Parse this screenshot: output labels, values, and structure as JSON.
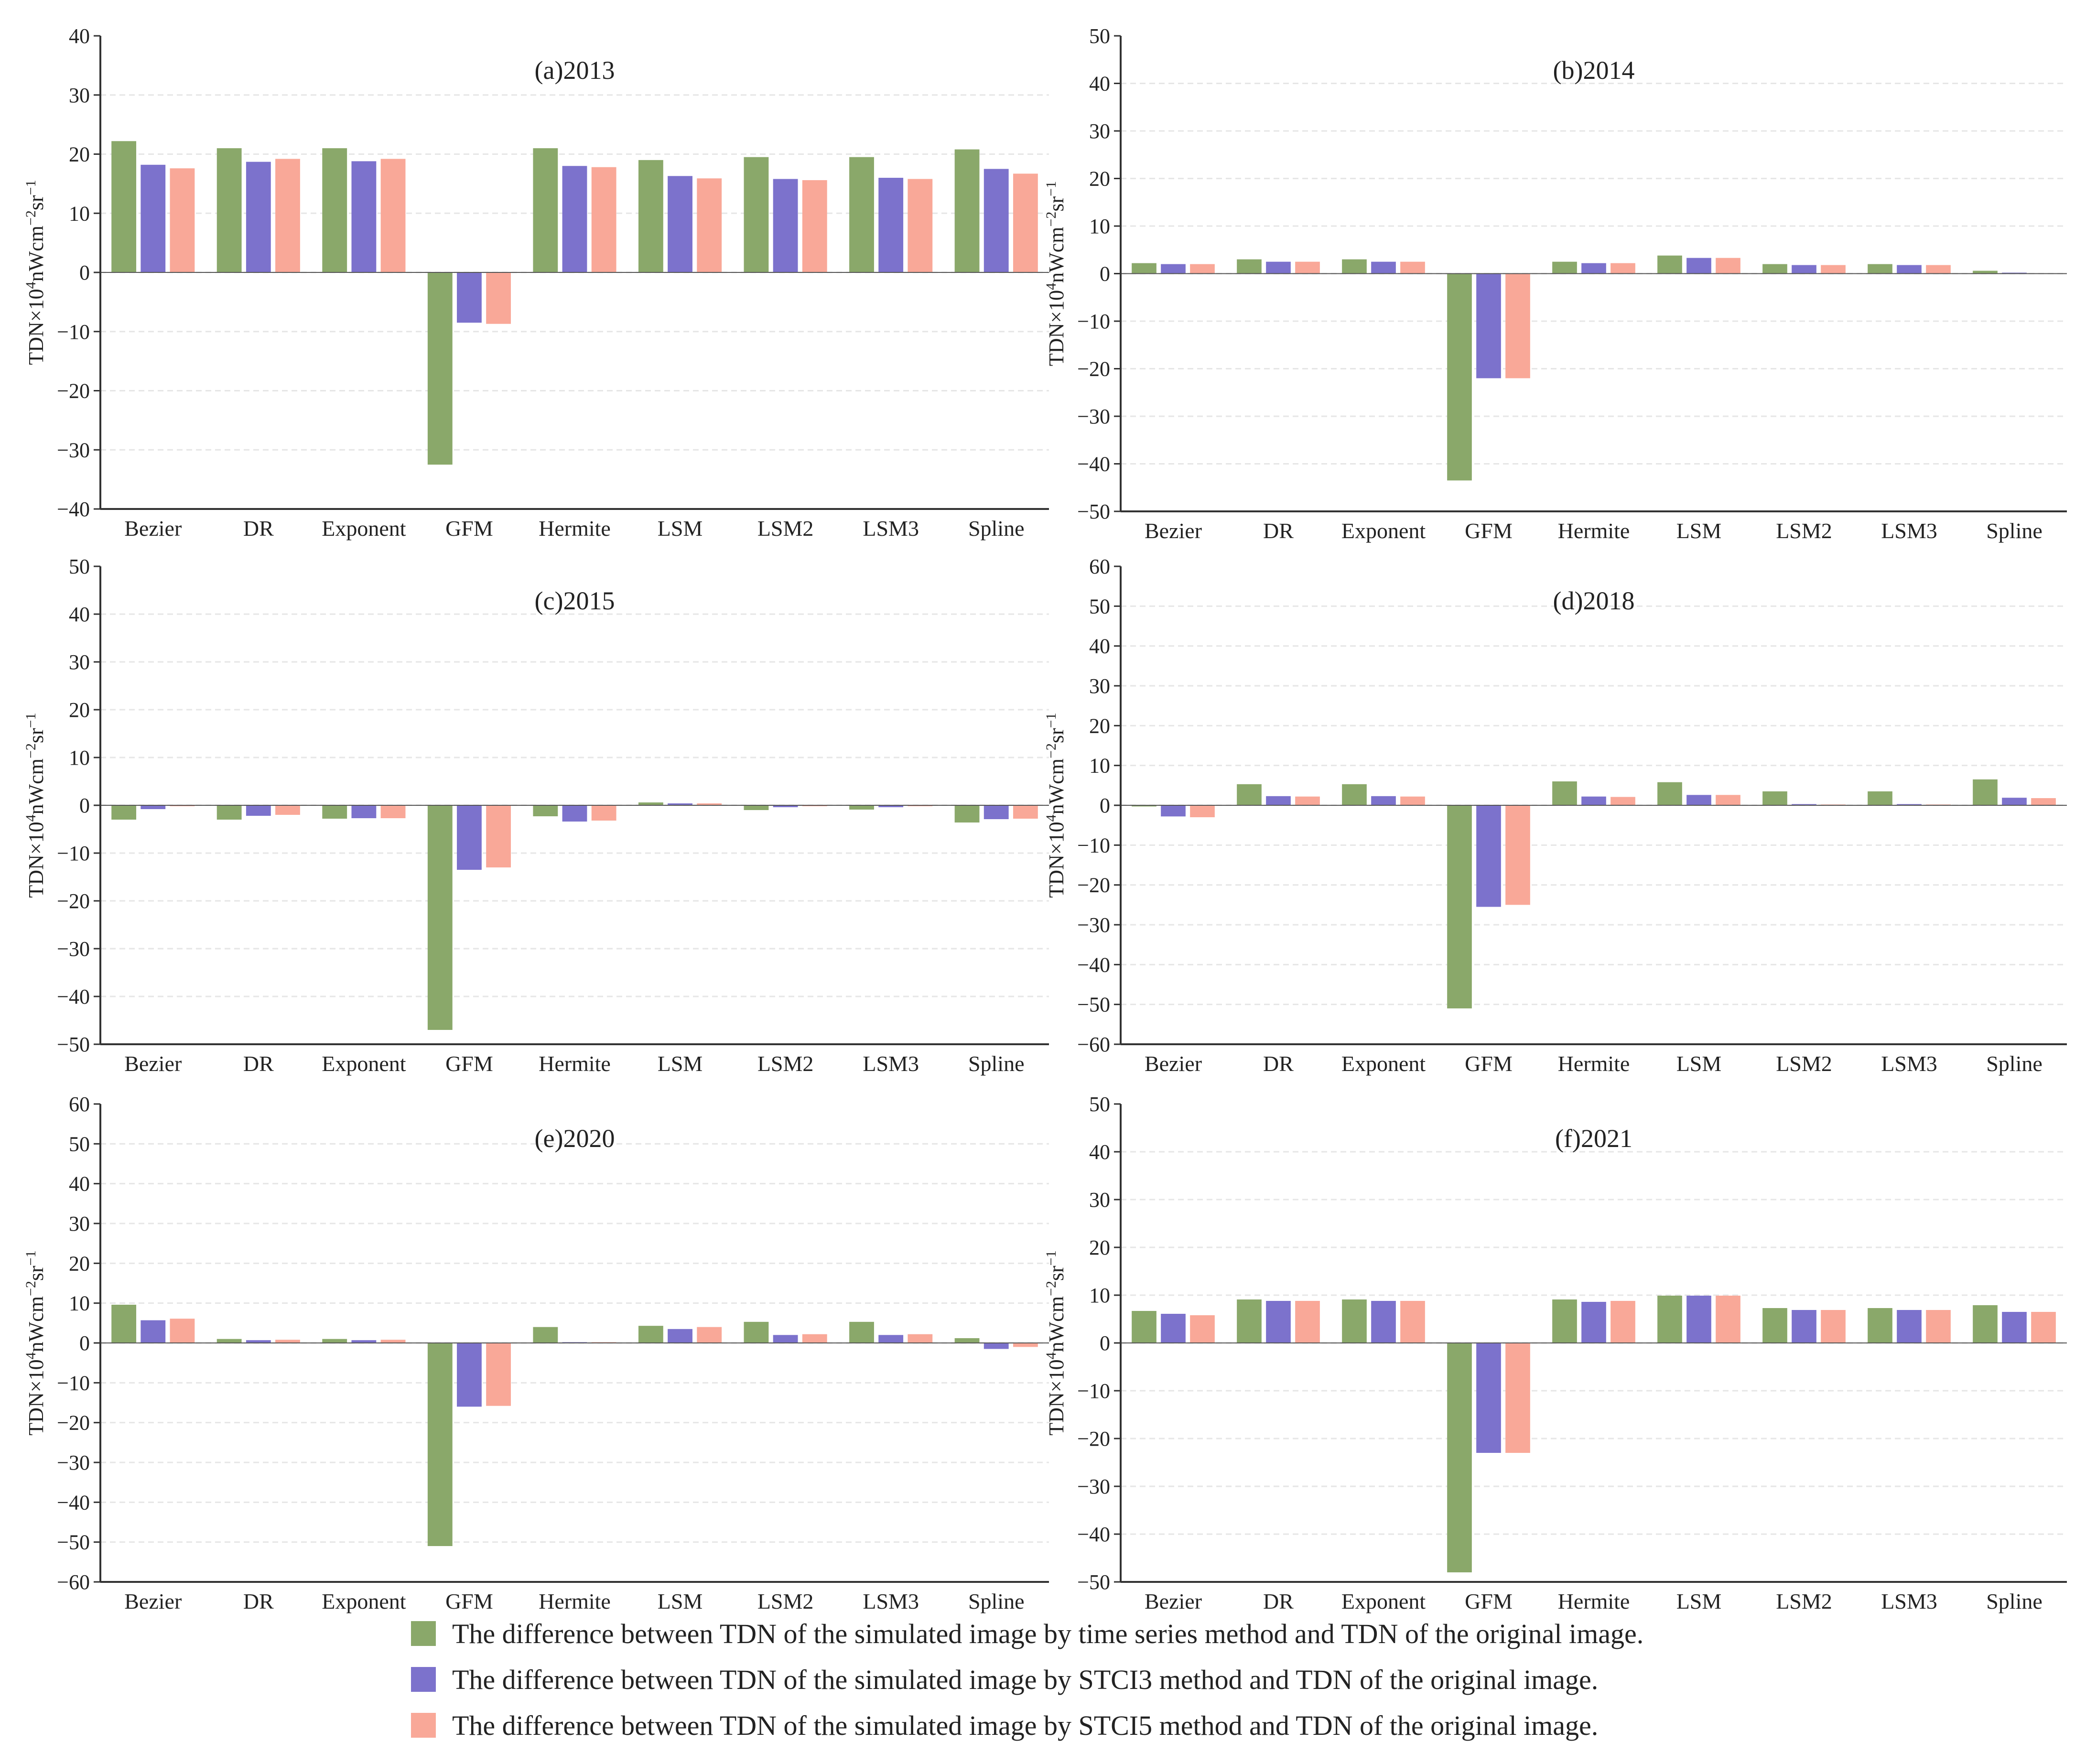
{
  "colors": {
    "s1": "#8aa86a",
    "s2": "#7c72cc",
    "s3": "#f9a898",
    "axis": "#333333",
    "grid": "#e6e6e6"
  },
  "ylabel": {
    "prefix": "TDN×10",
    "sup1": "4",
    "mid1": "nWcm",
    "sup2": "−2",
    "mid2": "sr",
    "sup3": "−1"
  },
  "legend": [
    "The difference between TDN of the simulated image by time series method and TDN of the original image.",
    "The difference between TDN of the simulated image by STCI3 method and TDN of the original image.",
    "The difference between TDN of the simulated image by STCI5 method and TDN of the original image."
  ],
  "chart_data": [
    {
      "type": "bar",
      "title": "(a)2013",
      "categories": [
        "Bezier",
        "DR",
        "Exponent",
        "GFM",
        "Hermite",
        "LSM",
        "LSM2",
        "LSM3",
        "Spline"
      ],
      "ylim": [
        -40,
        40
      ],
      "yticks": [
        -40,
        -30,
        -20,
        -10,
        0,
        10,
        20,
        30,
        40
      ],
      "series": [
        {
          "name": "time series",
          "values": [
            22.2,
            21.0,
            21.0,
            -32.5,
            21.0,
            19.0,
            19.5,
            19.5,
            20.8
          ]
        },
        {
          "name": "STCI3",
          "values": [
            18.2,
            18.7,
            18.8,
            -8.5,
            18.0,
            16.3,
            15.8,
            16.0,
            17.5
          ]
        },
        {
          "name": "STCI5",
          "values": [
            17.6,
            19.2,
            19.2,
            -8.7,
            17.8,
            15.9,
            15.6,
            15.8,
            16.7
          ]
        }
      ]
    },
    {
      "type": "bar",
      "title": "(b)2014",
      "categories": [
        "Bezier",
        "DR",
        "Exponent",
        "GFM",
        "Hermite",
        "LSM",
        "LSM2",
        "LSM3",
        "Spline"
      ],
      "ylim": [
        -50,
        50
      ],
      "yticks": [
        -50,
        -40,
        -30,
        -20,
        -10,
        0,
        10,
        20,
        30,
        40,
        50
      ],
      "series": [
        {
          "name": "time series",
          "values": [
            2.2,
            3.0,
            3.0,
            -43.5,
            2.5,
            3.8,
            2.0,
            2.0,
            0.6
          ]
        },
        {
          "name": "STCI3",
          "values": [
            2.0,
            2.5,
            2.5,
            -22.0,
            2.2,
            3.3,
            1.8,
            1.8,
            0.2
          ]
        },
        {
          "name": "STCI5",
          "values": [
            2.0,
            2.5,
            2.5,
            -22.0,
            2.2,
            3.3,
            1.8,
            1.8,
            0.1
          ]
        }
      ]
    },
    {
      "type": "bar",
      "title": "(c)2015",
      "categories": [
        "Bezier",
        "DR",
        "Exponent",
        "GFM",
        "Hermite",
        "LSM",
        "LSM2",
        "LSM3",
        "Spline"
      ],
      "ylim": [
        -50,
        50
      ],
      "yticks": [
        -50,
        -40,
        -30,
        -20,
        -10,
        0,
        10,
        20,
        30,
        40,
        50
      ],
      "series": [
        {
          "name": "time series",
          "values": [
            -3.0,
            -3.0,
            -2.8,
            -47.0,
            -2.3,
            0.6,
            -1.0,
            -0.9,
            -3.6
          ]
        },
        {
          "name": "STCI3",
          "values": [
            -0.8,
            -2.2,
            -2.7,
            -13.5,
            -3.4,
            0.4,
            -0.4,
            -0.4,
            -2.9
          ]
        },
        {
          "name": "STCI5",
          "values": [
            -0.2,
            -2.0,
            -2.7,
            -13.0,
            -3.2,
            0.4,
            -0.2,
            -0.2,
            -2.8
          ]
        }
      ]
    },
    {
      "type": "bar",
      "title": "(d)2018",
      "categories": [
        "Bezier",
        "DR",
        "Exponent",
        "GFM",
        "Hermite",
        "LSM",
        "LSM2",
        "LSM3",
        "Spline"
      ],
      "ylim": [
        -60,
        60
      ],
      "yticks": [
        -60,
        -50,
        -40,
        -30,
        -20,
        -10,
        0,
        10,
        20,
        30,
        40,
        50,
        60
      ],
      "series": [
        {
          "name": "time series",
          "values": [
            -0.3,
            5.3,
            5.3,
            -51.0,
            6.0,
            5.8,
            3.5,
            3.5,
            6.5
          ]
        },
        {
          "name": "STCI3",
          "values": [
            -2.8,
            2.3,
            2.3,
            -25.5,
            2.2,
            2.6,
            0.3,
            0.3,
            1.9
          ]
        },
        {
          "name": "STCI5",
          "values": [
            -3.0,
            2.2,
            2.2,
            -25.0,
            2.1,
            2.6,
            0.2,
            0.2,
            1.8
          ]
        }
      ]
    },
    {
      "type": "bar",
      "title": "(e)2020",
      "categories": [
        "Bezier",
        "DR",
        "Exponent",
        "GFM",
        "Hermite",
        "LSM",
        "LSM2",
        "LSM3",
        "Spline"
      ],
      "ylim": [
        -60,
        60
      ],
      "yticks": [
        -60,
        -50,
        -40,
        -30,
        -20,
        -10,
        0,
        10,
        20,
        30,
        40,
        50,
        60
      ],
      "series": [
        {
          "name": "time series",
          "values": [
            9.6,
            1.0,
            1.0,
            -51.0,
            4.0,
            4.3,
            5.3,
            5.3,
            1.2
          ]
        },
        {
          "name": "STCI3",
          "values": [
            5.7,
            0.7,
            0.7,
            -16.0,
            0.2,
            3.5,
            2.0,
            2.0,
            -1.5
          ]
        },
        {
          "name": "STCI5",
          "values": [
            6.1,
            0.8,
            0.8,
            -15.8,
            0.2,
            4.0,
            2.2,
            2.2,
            -1.0
          ]
        }
      ]
    },
    {
      "type": "bar",
      "title": "(f)2021",
      "categories": [
        "Bezier",
        "DR",
        "Exponent",
        "GFM",
        "Hermite",
        "LSM",
        "LSM2",
        "LSM3",
        "Spline"
      ],
      "ylim": [
        -50,
        50
      ],
      "yticks": [
        -50,
        -40,
        -30,
        -20,
        -10,
        0,
        10,
        20,
        30,
        40,
        50
      ],
      "series": [
        {
          "name": "time series",
          "values": [
            6.7,
            9.1,
            9.1,
            -48.0,
            9.1,
            9.9,
            7.3,
            7.3,
            7.9
          ]
        },
        {
          "name": "STCI3",
          "values": [
            6.1,
            8.8,
            8.8,
            -23.0,
            8.6,
            9.9,
            6.9,
            6.9,
            6.5
          ]
        },
        {
          "name": "STCI5",
          "values": [
            5.8,
            8.8,
            8.8,
            -23.0,
            8.8,
            9.9,
            6.9,
            6.9,
            6.5
          ]
        }
      ]
    }
  ]
}
